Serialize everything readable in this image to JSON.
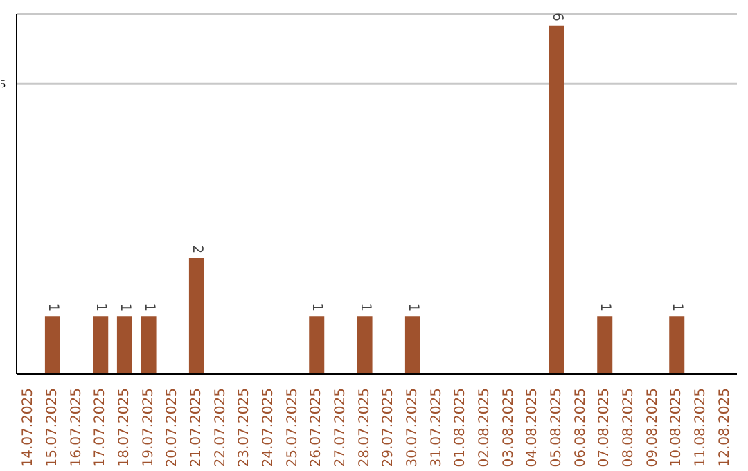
{
  "chart_data": {
    "type": "bar",
    "categories": [
      "14.07.2025",
      "15.07.2025",
      "16.07.2025",
      "17.07.2025",
      "18.07.2025",
      "19.07.2025",
      "20.07.2025",
      "21.07.2025",
      "22.07.2025",
      "23.07.2025",
      "24.07.2025",
      "25.07.2025",
      "26.07.2025",
      "27.07.2025",
      "28.07.2025",
      "29.07.2025",
      "30.07.2025",
      "31.07.2025",
      "01.08.2025",
      "02.08.2025",
      "03.08.2025",
      "04.08.2025",
      "05.08.2025",
      "06.08.2025",
      "07.08.2025",
      "08.08.2025",
      "09.08.2025",
      "10.08.2025",
      "11.08.2025",
      "12.08.2025"
    ],
    "values": [
      0,
      1,
      0,
      1,
      1,
      1,
      0,
      2,
      0,
      0,
      0,
      0,
      1,
      0,
      1,
      0,
      1,
      0,
      0,
      0,
      0,
      0,
      6,
      0,
      1,
      0,
      0,
      1,
      0,
      0
    ],
    "value_labels": [
      null,
      "1",
      null,
      "1",
      "1",
      "1",
      null,
      "2",
      null,
      null,
      null,
      null,
      "1",
      null,
      "1",
      null,
      "1",
      null,
      null,
      null,
      null,
      null,
      "6",
      null,
      "1",
      null,
      null,
      "1",
      null,
      null
    ],
    "color": "#a0522d",
    "ylim": [
      0,
      6.2
    ],
    "yticks": [
      5
    ],
    "grid": "y"
  }
}
